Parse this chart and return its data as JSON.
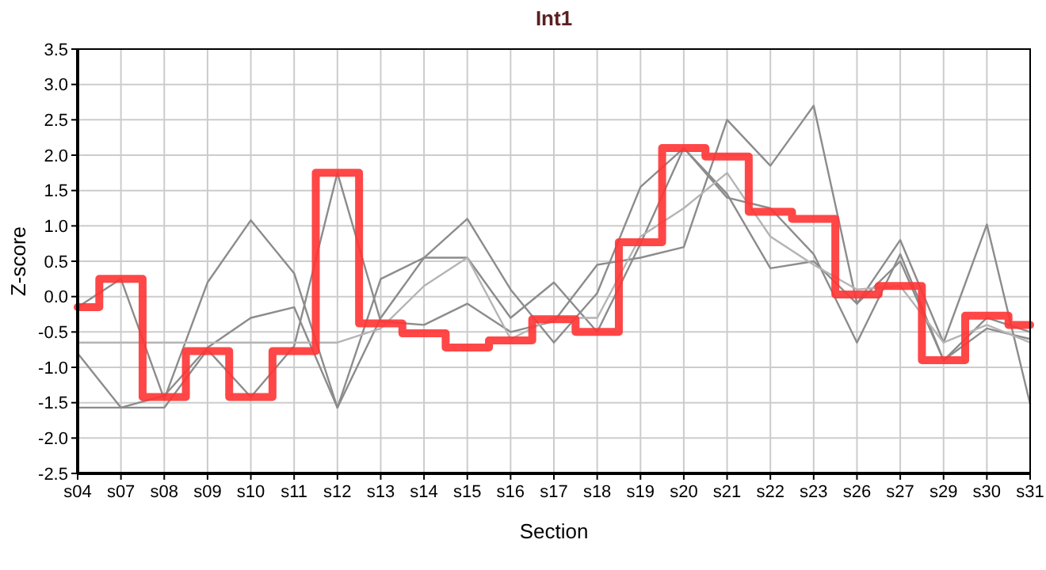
{
  "chart_data": {
    "type": "line",
    "title": "Int1",
    "xlabel": "Section",
    "ylabel": "Z-score",
    "categories": [
      "s04",
      "s07",
      "s08",
      "s09",
      "s10",
      "s11",
      "s12",
      "s13",
      "s14",
      "s15",
      "s16",
      "s17",
      "s18",
      "s19",
      "s20",
      "s21",
      "s22",
      "s23",
      "s26",
      "s27",
      "s29",
      "s30",
      "s31"
    ],
    "series": [
      {
        "color": "#8c8c8c",
        "values": [
          -0.15,
          0.25,
          -1.45,
          0.2,
          1.08,
          0.33,
          -1.57,
          0.25,
          0.55,
          1.1,
          0.1,
          -0.65,
          0.05,
          1.55,
          2.1,
          1.4,
          1.25,
          0.6,
          -0.65,
          0.6,
          -0.9,
          -0.3,
          -0.5
        ]
      },
      {
        "color": "#8c8c8c",
        "values": [
          -0.8,
          -1.57,
          -1.4,
          -0.72,
          -0.3,
          -0.15,
          -1.57,
          -0.3,
          0.55,
          0.55,
          -0.3,
          0.2,
          -0.5,
          0.75,
          2.1,
          1.45,
          0.4,
          0.5,
          -0.1,
          0.8,
          -0.65,
          1.02,
          -1.52
        ]
      },
      {
        "color": "#8c8c8c",
        "values": [
          -1.57,
          -1.57,
          -1.57,
          -0.75,
          -1.42,
          -0.7,
          1.75,
          -0.35,
          -0.4,
          -0.1,
          -0.5,
          -0.35,
          0.45,
          0.55,
          0.7,
          2.5,
          1.85,
          2.7,
          -0.1,
          0.5,
          -0.9,
          -0.45,
          -0.6
        ]
      },
      {
        "color": "#b4b4b4",
        "values": [
          -0.65,
          -0.65,
          -0.65,
          -0.65,
          -0.65,
          -0.65,
          -0.65,
          -0.45,
          0.15,
          0.55,
          -0.6,
          -0.3,
          -0.3,
          0.85,
          1.25,
          1.75,
          0.85,
          0.45,
          0.1,
          0.15,
          -0.65,
          -0.4,
          -0.65
        ]
      },
      {
        "type": "step",
        "color": "#ff3333",
        "values": [
          -0.15,
          0.25,
          -1.42,
          -0.77,
          -1.42,
          -0.77,
          1.75,
          -0.38,
          -0.52,
          -0.72,
          -0.62,
          -0.32,
          -0.5,
          0.77,
          2.1,
          1.98,
          1.2,
          1.1,
          0.03,
          0.15,
          -0.9,
          -0.27,
          -0.4
        ]
      }
    ],
    "ylim": [
      -2.5,
      3.5
    ],
    "yticks": [
      {
        "value": -2.5,
        "label": "-2.5"
      },
      {
        "value": -2,
        "label": "-2.0"
      },
      {
        "value": -1.5,
        "label": "-1.5"
      },
      {
        "value": -1,
        "label": "-1.0"
      },
      {
        "value": -0.5,
        "label": "-0.5"
      },
      {
        "value": 0,
        "label": "0.0"
      },
      {
        "value": 0.5,
        "label": "0.5"
      },
      {
        "value": 1,
        "label": "1.0"
      },
      {
        "value": 1.5,
        "label": "1.5"
      },
      {
        "value": 2,
        "label": "2.0"
      },
      {
        "value": 2.5,
        "label": "2.5"
      },
      {
        "value": 3,
        "label": "3.0"
      },
      {
        "value": 3.5,
        "label": "3.5"
      }
    ],
    "grid": true
  }
}
